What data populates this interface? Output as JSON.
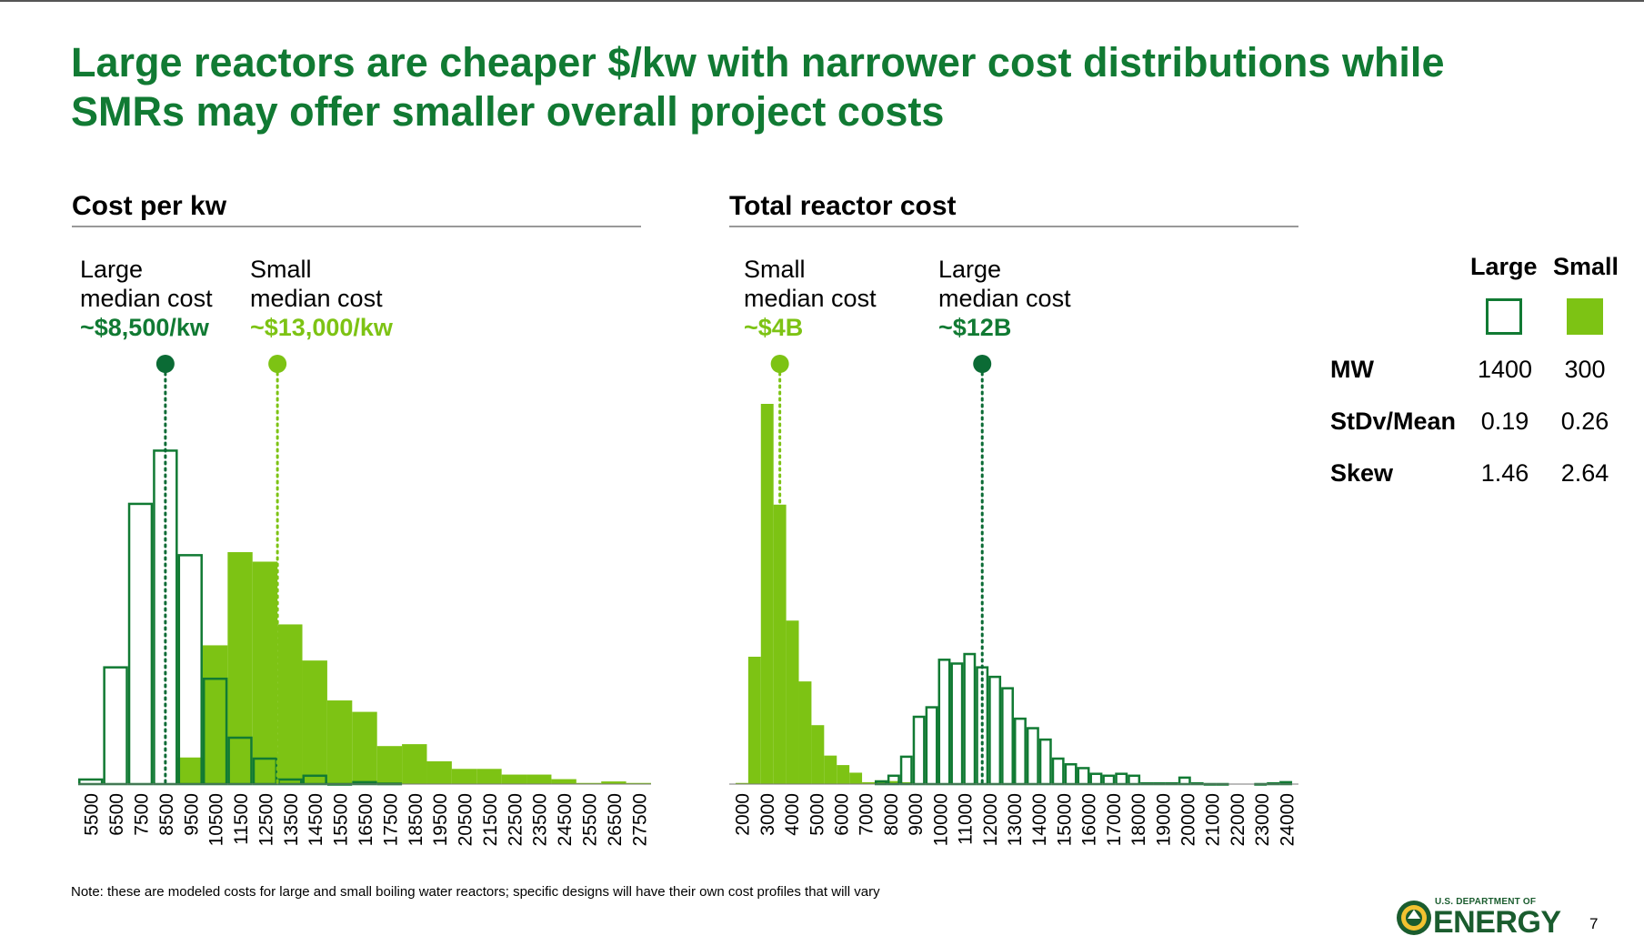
{
  "title": {
    "line1": "Large reactors are cheaper $/kw with narrower cost distributions while",
    "line2": "SMRs may offer smaller overall project costs"
  },
  "colors": {
    "large": "#117a33",
    "small": "#7dc314",
    "large_median_dot": "#0b6b35",
    "small_median_dot": "#7dc314"
  },
  "left_panel": {
    "title": "Cost per kw",
    "annotations": [
      {
        "line1": "Large",
        "line2": "median cost",
        "value": "~$8,500/kw",
        "color": "#117a33"
      },
      {
        "line1": "Small",
        "line2": "median cost",
        "value": "~$13,000/kw",
        "color": "#7dc314"
      }
    ]
  },
  "right_panel": {
    "title": "Total reactor cost",
    "annotations": [
      {
        "line1": "Small",
        "line2": "median cost",
        "value": "~$4B",
        "color": "#7dc314"
      },
      {
        "line1": "Large",
        "line2": "median cost",
        "value": "~$12B",
        "color": "#117a33"
      }
    ]
  },
  "stats_table": {
    "headers": [
      "Large",
      "Small"
    ],
    "legend": [
      {
        "name": "Large",
        "fill": "#ffffff",
        "stroke": "#117a33"
      },
      {
        "name": "Small",
        "fill": "#7dc314",
        "stroke": "#7dc314"
      }
    ],
    "rows": [
      {
        "label": "MW",
        "large": "1400",
        "small": "300"
      },
      {
        "label": "StDv/Mean",
        "large": "0.19",
        "small": "0.26"
      },
      {
        "label": "Skew",
        "large": "1.46",
        "small": "2.64"
      }
    ]
  },
  "chart_data": [
    {
      "type": "bar",
      "title": "Cost per kw",
      "tick_labels": [
        "5500",
        "6500",
        "7500",
        "8500",
        "9500",
        "10500",
        "11500",
        "12500",
        "13500",
        "14500",
        "15500",
        "16500",
        "17500",
        "18500",
        "19500",
        "20500",
        "21500",
        "22500",
        "23500",
        "24500",
        "25500",
        "26500",
        "27500"
      ],
      "x_range": [
        5000,
        28000
      ],
      "bin_width": 1000,
      "series": [
        {
          "name": "Large",
          "style": "outline",
          "x": [
            5500,
            6500,
            7500,
            8500,
            9500,
            10500,
            11500,
            12500,
            13500,
            14500,
            15500,
            16500,
            17500
          ],
          "values": [
            1.5,
            31,
            74,
            88,
            60.5,
            28,
            12.5,
            7,
            1.5,
            2.5,
            0.3,
            0.8,
            0.4
          ]
        },
        {
          "name": "Small",
          "style": "filled",
          "x": [
            9500,
            10500,
            11500,
            12500,
            13500,
            14500,
            15500,
            16500,
            17500,
            18500,
            19500,
            20500,
            21500,
            22500,
            23500,
            24500,
            25500,
            26500,
            27500
          ],
          "values": [
            7,
            36.5,
            61,
            58.5,
            42,
            32.5,
            22,
            19,
            10,
            10.5,
            6,
            4,
            4,
            2.5,
            2.5,
            1.3,
            0.3,
            0.7,
            0.3
          ]
        }
      ],
      "median_markers": [
        {
          "series": "Large",
          "x": 8500
        },
        {
          "series": "Small",
          "x": 13000
        }
      ]
    },
    {
      "type": "bar",
      "title": "Total reactor cost",
      "tick_labels": [
        "2000",
        "3000",
        "4000",
        "5000",
        "6000",
        "7000",
        "8000",
        "9000",
        "10000",
        "11000",
        "12000",
        "13000",
        "14000",
        "15000",
        "16000",
        "17000",
        "18000",
        "19000",
        "20000",
        "21000",
        "22000",
        "23000",
        "24000"
      ],
      "x_range": [
        2000,
        24500
      ],
      "bin_width": 500,
      "series": [
        {
          "name": "Small",
          "style": "filled",
          "x": [
            2500,
            3000,
            3500,
            4000,
            4500,
            5000,
            5500,
            6000,
            6500,
            7000,
            7500,
            8000,
            8500,
            9000
          ],
          "values": [
            0.3,
            33.5,
            100,
            73.5,
            43,
            27,
            15.5,
            7.5,
            5,
            3,
            0.5,
            1,
            0.8,
            0.5
          ]
        },
        {
          "name": "Large",
          "style": "outline",
          "x": [
            8000,
            8500,
            9000,
            9500,
            10000,
            10500,
            11000,
            11500,
            12000,
            12500,
            13000,
            13500,
            14000,
            14500,
            15000,
            15500,
            16000,
            16500,
            17000,
            17500,
            18000,
            18500,
            19000,
            19500,
            20000,
            20500,
            21000,
            21500,
            23000,
            23500,
            24000
          ],
          "values": [
            1,
            2.5,
            7.5,
            18,
            20.5,
            33,
            32,
            34.5,
            31,
            28.5,
            25.5,
            17.5,
            15,
            12,
            7,
            5.5,
            4.5,
            3,
            2.5,
            3,
            2.5,
            0.5,
            0.5,
            0.5,
            2,
            0.5,
            0.3,
            0.3,
            0.3,
            0.5,
            0.8
          ]
        }
      ],
      "median_markers": [
        {
          "series": "Small",
          "x": 4000
        },
        {
          "series": "Large",
          "x": 12000
        }
      ]
    }
  ],
  "note": "Note: these are modeled costs for large and small boiling water reactors; specific designs will have their own cost profiles that will vary",
  "logo": {
    "small_text": "U.S. DEPARTMENT OF",
    "big_text": "ENERGY"
  },
  "page_number": "7"
}
